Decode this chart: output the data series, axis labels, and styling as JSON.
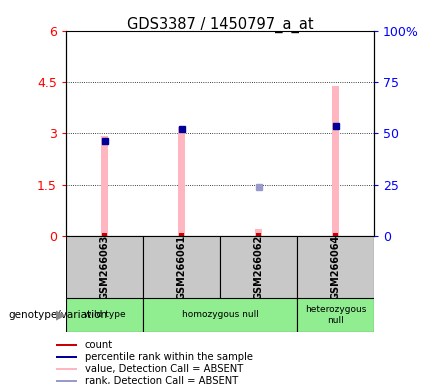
{
  "title": "GDS3387 / 1450797_a_at",
  "samples": [
    "GSM266063",
    "GSM266061",
    "GSM266062",
    "GSM266064"
  ],
  "genotype_groups": [
    {
      "label": "wild type",
      "start": 0,
      "end": 1
    },
    {
      "label": "homozygous null",
      "start": 1,
      "end": 3
    },
    {
      "label": "heterozygous\nnull",
      "start": 3,
      "end": 4
    }
  ],
  "value_absent": [
    2.93,
    3.19,
    0.22,
    4.38
  ],
  "rank_absent_pct": [
    null,
    null,
    24.0,
    null
  ],
  "percentile_val": [
    2.77,
    3.14,
    null,
    3.22
  ],
  "ylim_left": [
    0,
    6
  ],
  "ylim_right": [
    0,
    100
  ],
  "yticks_left": [
    0,
    1.5,
    3.0,
    4.5,
    6
  ],
  "yticks_right": [
    0,
    25,
    50,
    75,
    100
  ],
  "color_value_absent": "#FFB6C1",
  "color_rank_absent": "#9999CC",
  "color_count": "#CC0000",
  "color_percentile": "#000099",
  "bg_sample": "#C8C8C8",
  "bg_geno": "#90EE90",
  "legend_items": [
    {
      "color": "#CC0000",
      "label": "count"
    },
    {
      "color": "#000099",
      "label": "percentile rank within the sample"
    },
    {
      "color": "#FFB6C1",
      "label": "value, Detection Call = ABSENT"
    },
    {
      "color": "#9999CC",
      "label": "rank, Detection Call = ABSENT"
    }
  ]
}
